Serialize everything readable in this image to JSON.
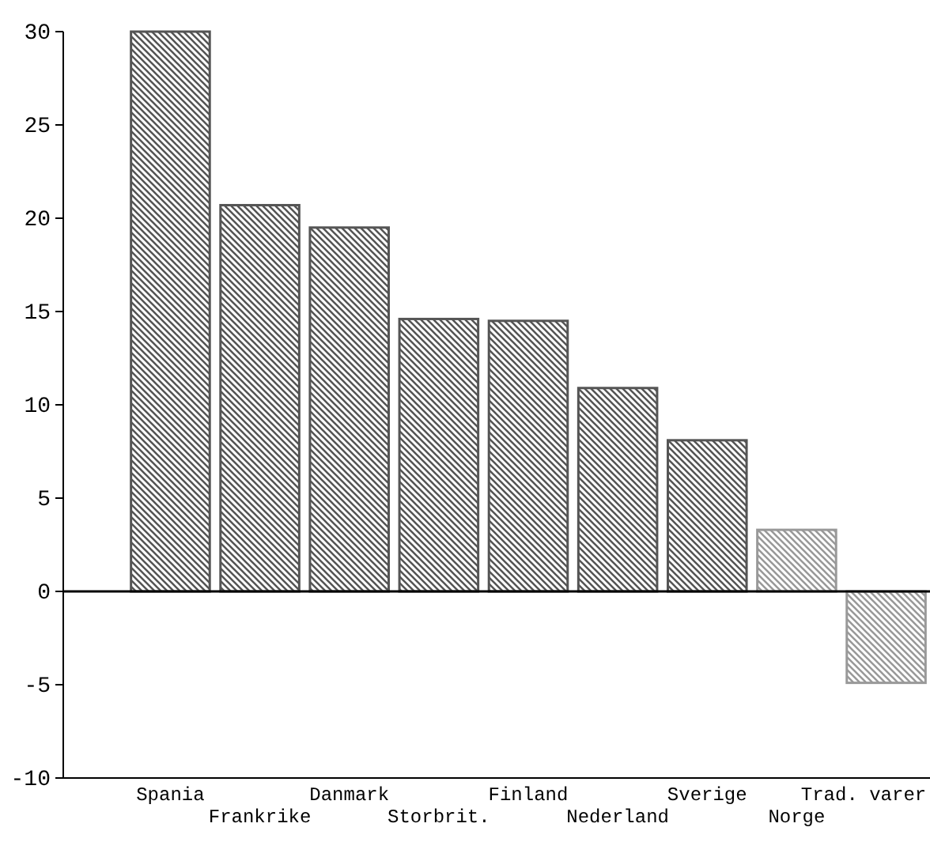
{
  "chart_data": {
    "type": "bar",
    "categories": [
      "Spania",
      "Frankrike",
      "Danmark",
      "Storbrit.",
      "Finland",
      "Nederland",
      "Sverige",
      "Norge",
      "Trad. varer"
    ],
    "values": [
      30,
      20.7,
      19.5,
      14.6,
      14.5,
      10.9,
      8.1,
      3.3,
      -4.9
    ],
    "colors": [
      "#555555",
      "#555555",
      "#555555",
      "#555555",
      "#555555",
      "#555555",
      "#555555",
      "#999999",
      "#999999"
    ],
    "ylim": [
      -10,
      30
    ],
    "yticks": [
      -10,
      -5,
      0,
      5,
      10,
      15,
      20,
      25,
      30
    ],
    "ref_lines": [
      {
        "axis": "y",
        "value": 0
      }
    ]
  }
}
